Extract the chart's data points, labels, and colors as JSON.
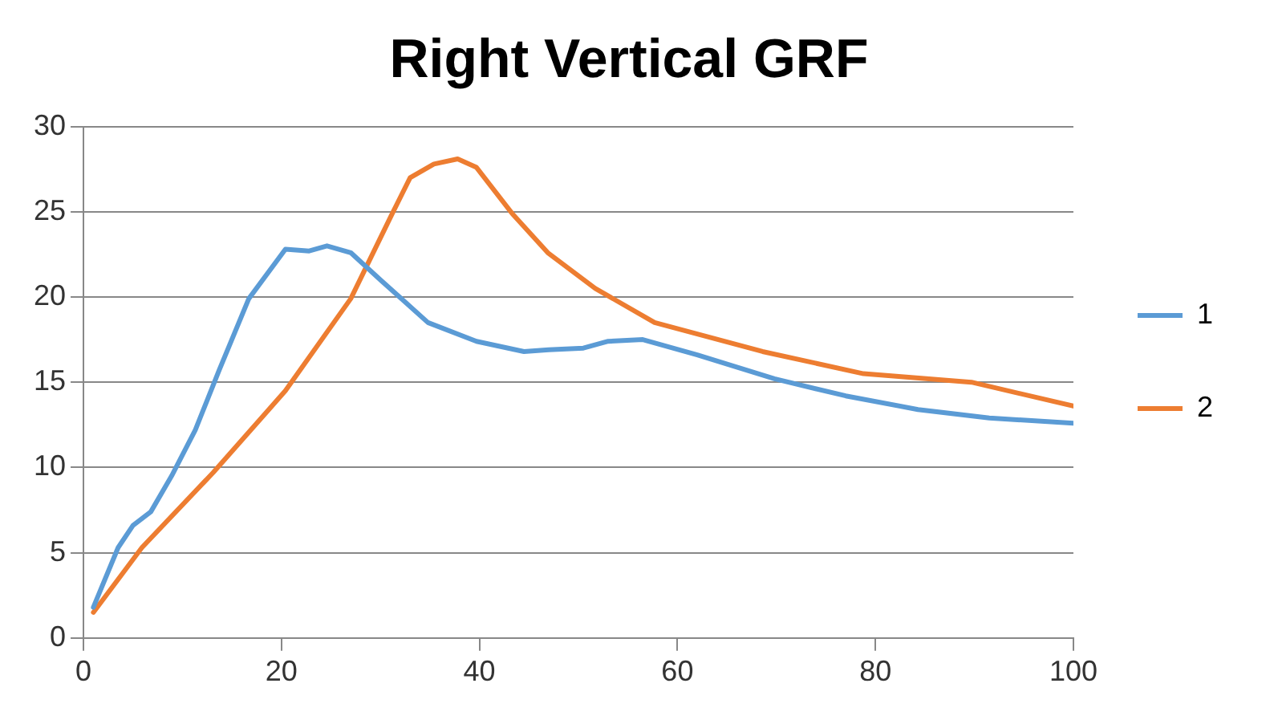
{
  "chart_data": {
    "type": "line",
    "title": "Right Vertical GRF",
    "xlim": [
      0,
      100
    ],
    "xticks": [
      0,
      20,
      40,
      60,
      80,
      100
    ],
    "ylim": [
      0,
      30
    ],
    "yticks": [
      0,
      5,
      10,
      15,
      20,
      25,
      30
    ],
    "grid": "y",
    "legend": "right",
    "marker": "none",
    "series": [
      {
        "name": "1",
        "color": "#5b9bd5",
        "x": [
          1,
          3.5,
          5,
          6.8,
          8.9,
          11.3,
          13.7,
          16.7,
          20.4,
          22.8,
          24.6,
          27,
          30,
          34.8,
          39.7,
          44.5,
          47,
          50.5,
          53,
          56.5,
          62,
          69.8,
          77,
          84.3,
          91.5,
          100
        ],
        "values": [
          1.8,
          5.3,
          6.6,
          7.4,
          9.5,
          12.2,
          15.7,
          19.9,
          22.8,
          22.7,
          23,
          22.6,
          21,
          18.5,
          17.4,
          16.8,
          16.9,
          17,
          17.4,
          17.5,
          16.6,
          15.2,
          14.2,
          13.4,
          12.9,
          12.6
        ]
      },
      {
        "name": "2",
        "color": "#ed7d31",
        "x": [
          1,
          5.9,
          13.1,
          20.4,
          27,
          31.2,
          33,
          35.4,
          37.8,
          39.7,
          43.3,
          46.9,
          51.7,
          57.7,
          68.6,
          78.8,
          89.7,
          100
        ],
        "values": [
          1.5,
          5.3,
          9.7,
          14.5,
          19.9,
          24.9,
          27,
          27.8,
          28.1,
          27.6,
          24.9,
          22.6,
          20.5,
          18.5,
          16.8,
          15.5,
          15,
          13.6
        ]
      }
    ]
  }
}
